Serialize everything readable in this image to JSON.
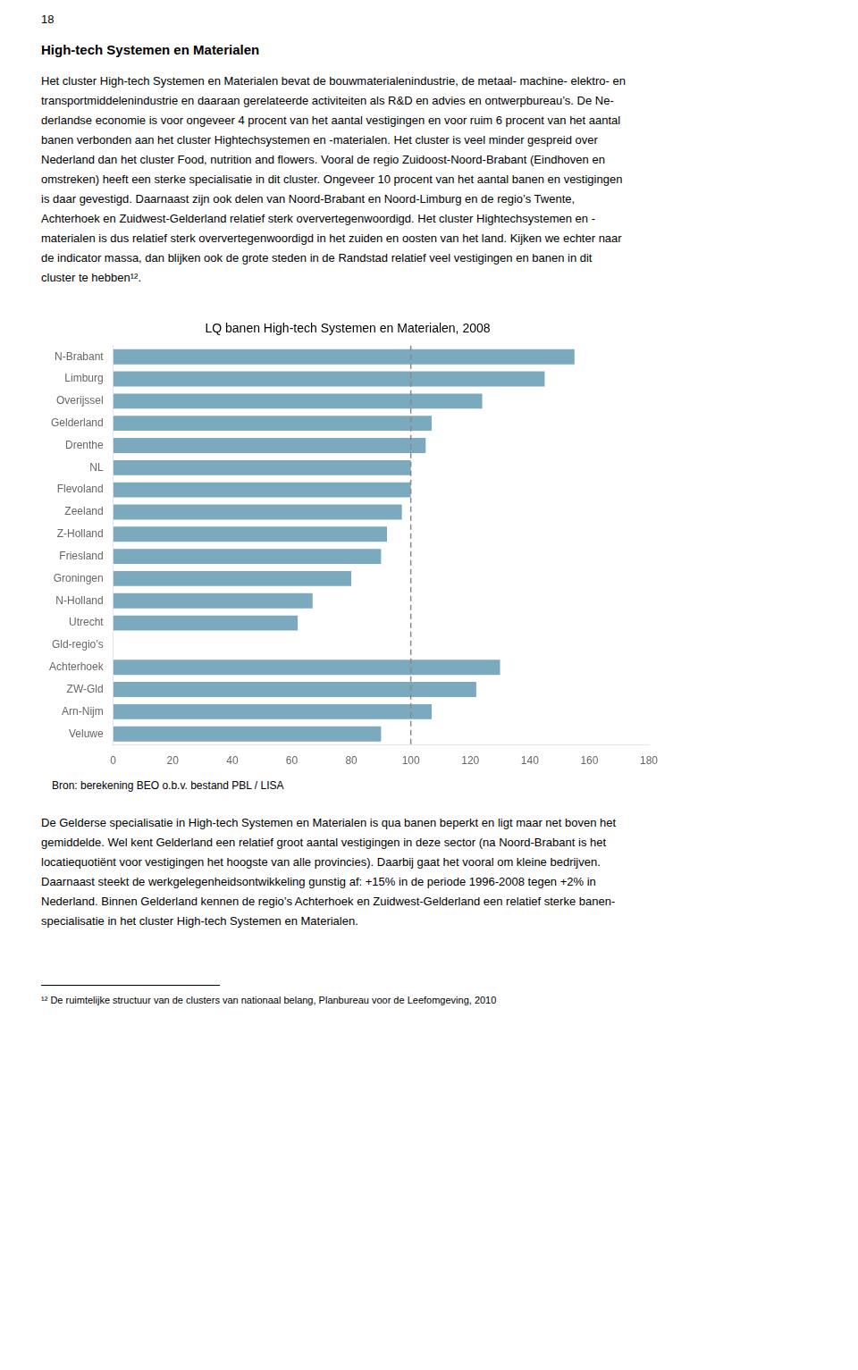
{
  "page_number": "18",
  "section_title": "High-tech Systemen en Materialen",
  "body_text_before": [
    "Het cluster High-tech Systemen en Materialen bevat de bouwmaterialenindustrie, de metaal- machine- elektro- en",
    "transportmiddelenindustrie en daaraan gerelateerde activiteiten als R&D en advies en ontwerpbureau’s. De Ne-",
    "derlandse economie is voor ongeveer 4 procent van het aantal vestigingen en voor ruim 6 procent van het aantal",
    "banen verbonden aan het cluster Hightechsystemen en -materialen. Het cluster is veel minder gespreid over",
    "Nederland dan het cluster Food, nutrition and flowers. Vooral de regio Zuidoost-Noord-Brabant (Eindhoven en",
    "omstreken) heeft een sterke specialisatie in dit cluster. Ongeveer 10 procent van het aantal banen en vestigingen",
    "is daar gevestigd. Daarnaast zijn ook delen van Noord-Brabant en Noord-Limburg en de regio’s Twente,",
    "Achterhoek en Zuidwest-Gelderland relatief sterk oververtegenwoordigd. Het cluster Hightechsystemen en -",
    "materialen is dus relatief sterk oververtegenwoordigd in het zuiden en oosten van het land. Kijken we echter naar",
    "de indicator massa, dan blijken ook de grote steden in de Randstad relatief veel vestigingen en banen in dit",
    "cluster te hebben¹²."
  ],
  "body_text_after": [
    "De Gelderse specialisatie in High-tech Systemen en Materialen is qua banen beperkt en ligt maar net boven het",
    "gemiddelde. Wel kent Gelderland een relatief groot aantal vestigingen in deze sector (na Noord-Brabant is het",
    "locatiequotiënt voor vestigingen het hoogste van alle provincies). Daarbij gaat het vooral om kleine bedrijven.",
    "Daarnaast steekt de werkgelegenheidsontwikkeling gunstig af: +15% in de periode 1996-2008 tegen +2% in",
    "Nederland. Binnen Gelderland kennen de regio’s Achterhoek en Zuidwest-Gelderland een relatief sterke banen-",
    "specialisatie in het cluster High-tech Systemen en Materialen."
  ],
  "footnote": "¹² De ruimtelijke structuur van de clusters van nationaal belang, Planbureau voor de Leefomgeving, 2010",
  "chart_data": {
    "type": "bar",
    "orientation": "horizontal",
    "title": "LQ banen High-tech Systemen en Materialen, 2008",
    "categories": [
      "N-Brabant",
      "Limburg",
      "Overijssel",
      "Gelderland",
      "Drenthe",
      "NL",
      "Flevoland",
      "Zeeland",
      "Z-Holland",
      "Friesland",
      "Groningen",
      "N-Holland",
      "Utrecht",
      "Gld-regio’s",
      "Achterhoek",
      "ZW-Gld",
      "Arn-Nijm",
      "Veluwe"
    ],
    "values": [
      155,
      145,
      124,
      107,
      105,
      100,
      100,
      97,
      92,
      90,
      80,
      67,
      62,
      null,
      130,
      122,
      107,
      90
    ],
    "color": "#7baabe",
    "xlim": [
      0,
      180
    ],
    "xticks": [
      0,
      20,
      40,
      60,
      80,
      100,
      120,
      140,
      160,
      180
    ],
    "grid": false,
    "reference_lines": [
      {
        "x": 100,
        "line_style": "dashed",
        "color": "#888888"
      }
    ],
    "annotations": [
      "Bron: berekening BEO o.b.v. bestand PBL / LISA"
    ]
  }
}
